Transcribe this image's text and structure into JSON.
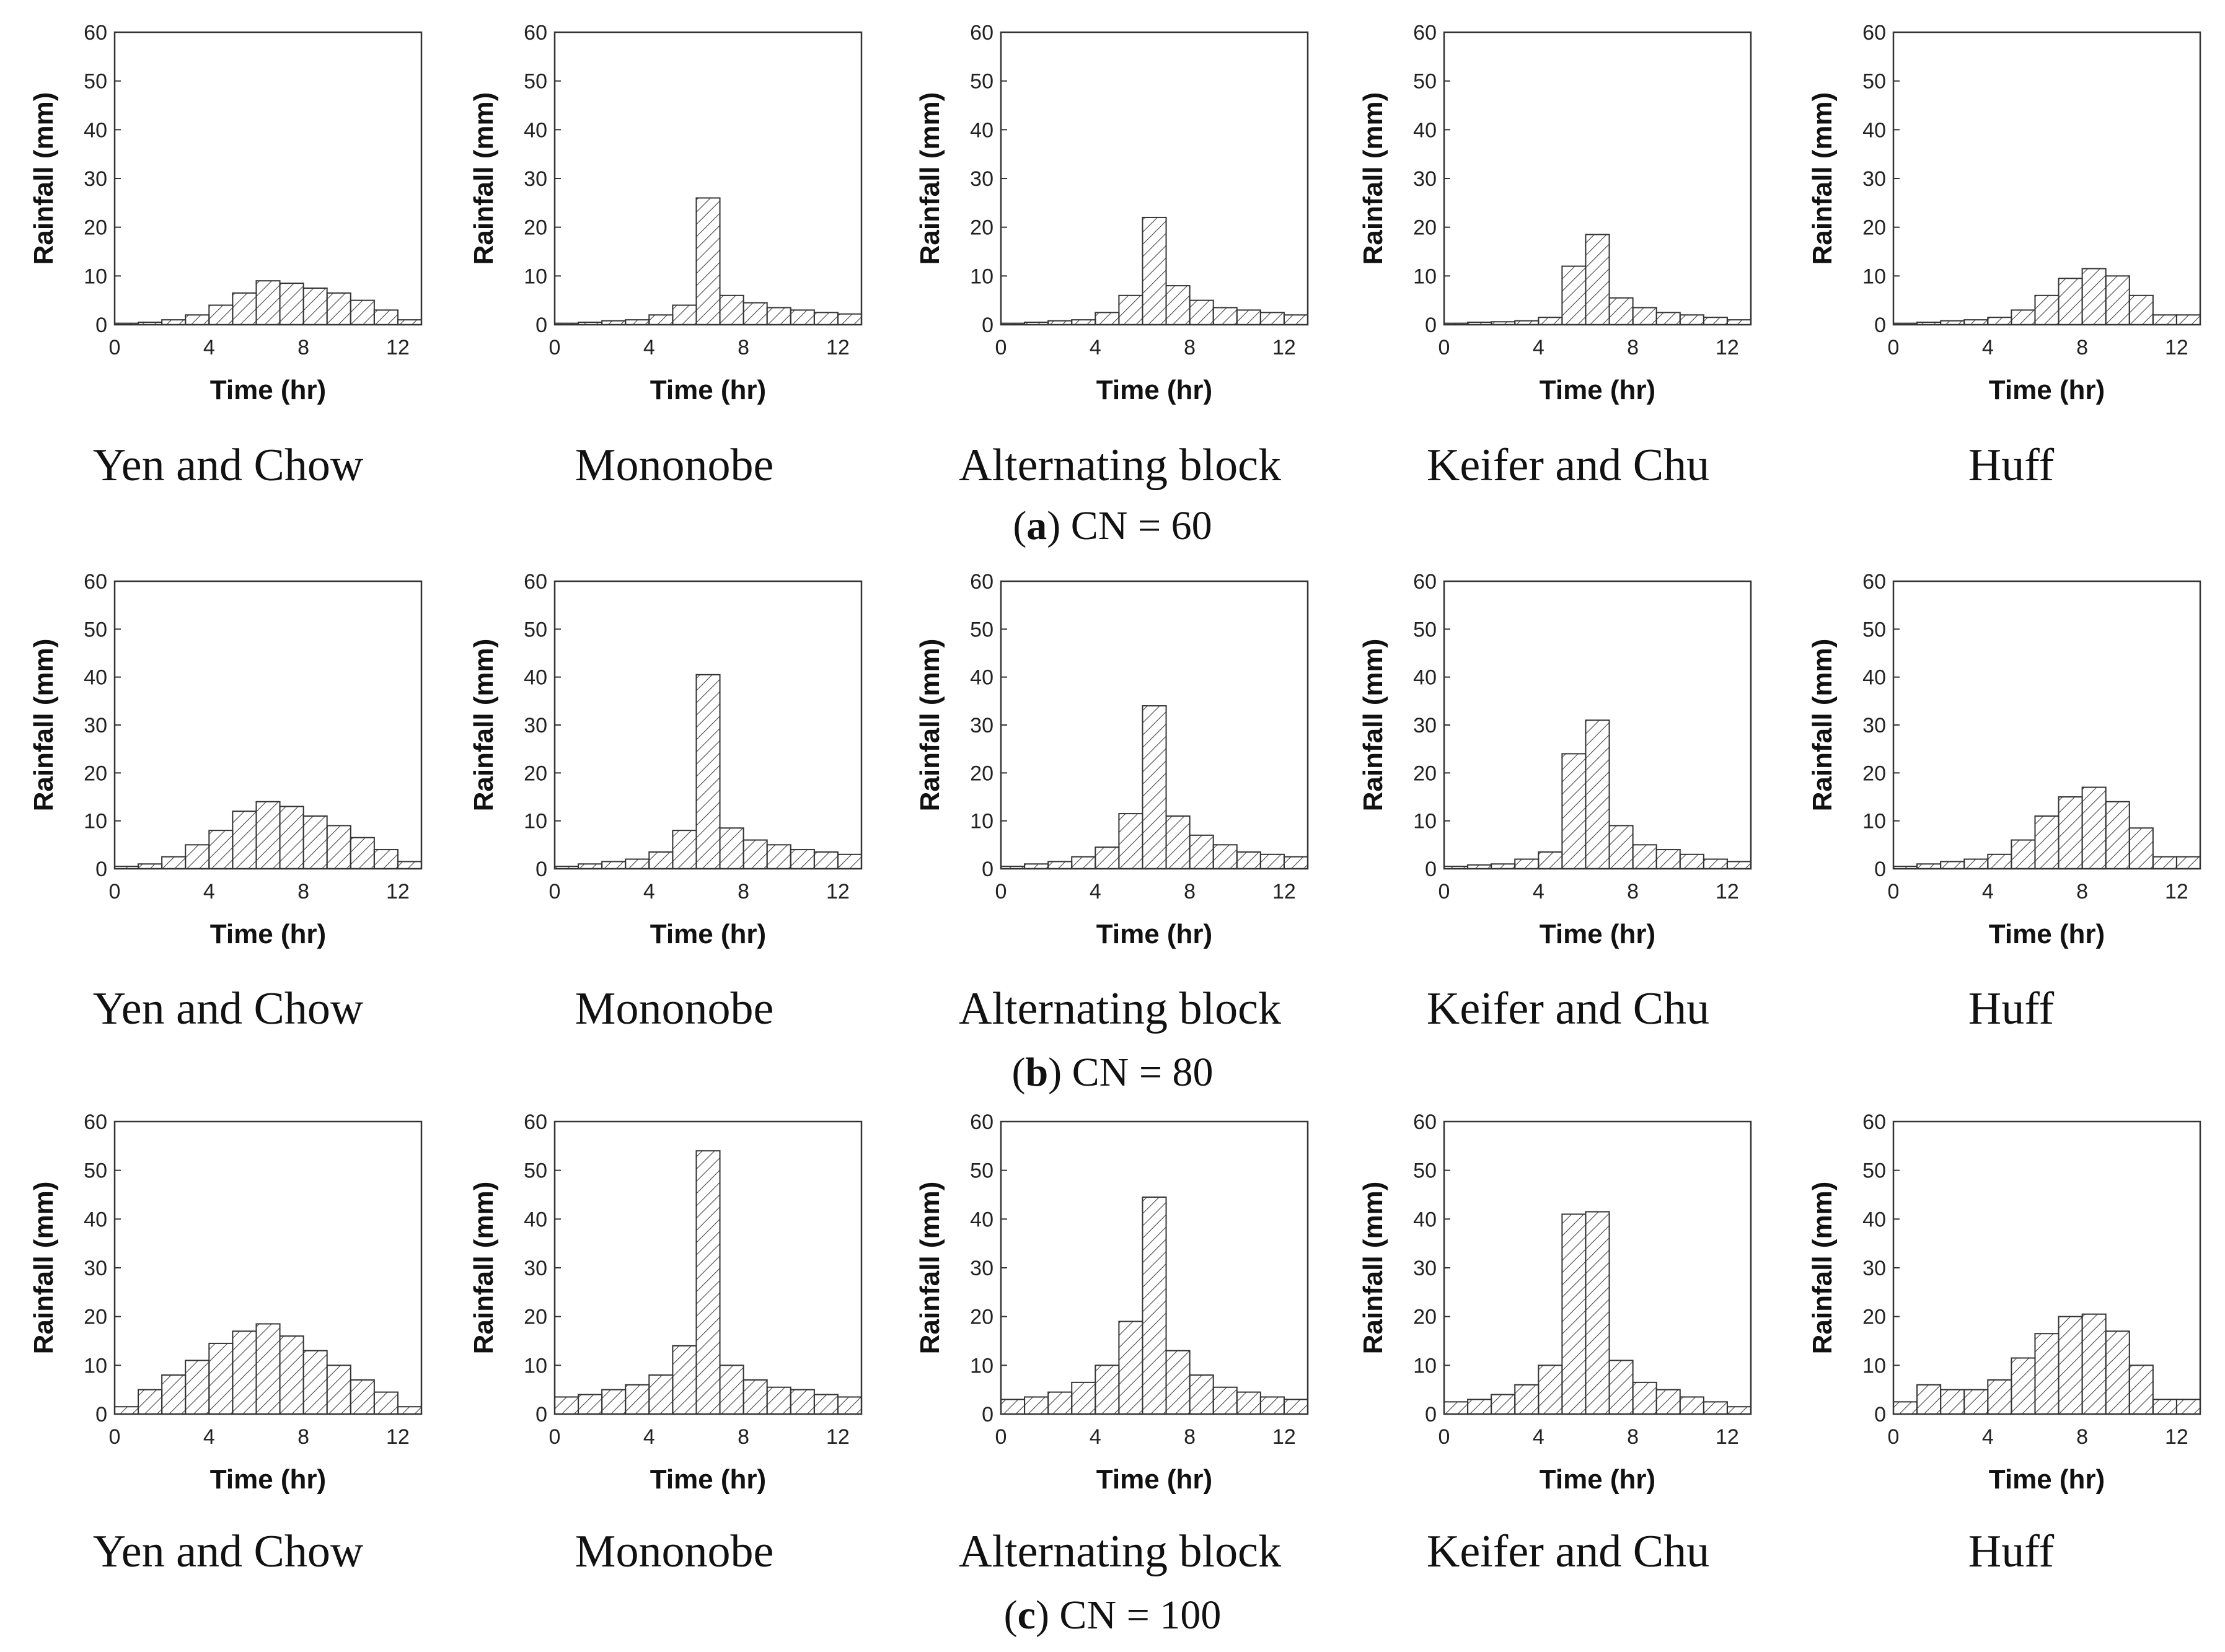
{
  "rows": [
    {
      "caption_letter": "a",
      "caption_text": ") CN = 60",
      "caption_open": "("
    },
    {
      "caption_letter": "b",
      "caption_text": ") CN = 80",
      "caption_open": "("
    },
    {
      "caption_letter": "c",
      "caption_text": ") CN = 100",
      "caption_open": "("
    }
  ],
  "panel_titles": [
    "Yen and Chow",
    "Mononobe",
    "Alternating block",
    "Keifer and Chu",
    "Huff"
  ],
  "axis": {
    "xlabel": "Time (hr)",
    "ylabel": "Rainfall (mm)"
  },
  "chart_data": [
    {
      "type": "bar",
      "row": 0,
      "col": 0,
      "title": "Yen and Chow",
      "xlabel": "Time (hr)",
      "ylabel": "Rainfall (mm)",
      "xlim": [
        0,
        13
      ],
      "ylim": [
        0,
        60
      ],
      "xticks": [
        0,
        4,
        8,
        12
      ],
      "yticks": [
        0,
        10,
        20,
        30,
        40,
        50,
        60
      ],
      "bin_width": 1,
      "x": [
        0,
        1,
        2,
        3,
        4,
        5,
        6,
        7,
        8,
        9,
        10,
        11,
        12
      ],
      "values": [
        0.3,
        0.5,
        1,
        2,
        4,
        6.5,
        9,
        8.5,
        7.5,
        6.5,
        5,
        3,
        1
      ]
    },
    {
      "type": "bar",
      "row": 0,
      "col": 1,
      "title": "Mononobe",
      "xlabel": "Time (hr)",
      "ylabel": "Rainfall (mm)",
      "xlim": [
        0,
        13
      ],
      "ylim": [
        0,
        60
      ],
      "xticks": [
        0,
        4,
        8,
        12
      ],
      "yticks": [
        0,
        10,
        20,
        30,
        40,
        50,
        60
      ],
      "bin_width": 1,
      "x": [
        0,
        1,
        2,
        3,
        4,
        5,
        6,
        7,
        8,
        9,
        10,
        11,
        12
      ],
      "values": [
        0.3,
        0.5,
        0.8,
        1,
        2,
        4,
        26,
        6,
        4.5,
        3.5,
        3,
        2.5,
        2.2
      ]
    },
    {
      "type": "bar",
      "row": 0,
      "col": 2,
      "title": "Alternating block",
      "xlabel": "Time (hr)",
      "ylabel": "Rainfall (mm)",
      "xlim": [
        0,
        13
      ],
      "ylim": [
        0,
        60
      ],
      "xticks": [
        0,
        4,
        8,
        12
      ],
      "yticks": [
        0,
        10,
        20,
        30,
        40,
        50,
        60
      ],
      "bin_width": 1,
      "x": [
        0,
        1,
        2,
        3,
        4,
        5,
        6,
        7,
        8,
        9,
        10,
        11,
        12
      ],
      "values": [
        0.3,
        0.5,
        0.8,
        1,
        2.5,
        6,
        22,
        8,
        5,
        3.5,
        3,
        2.5,
        2
      ]
    },
    {
      "type": "bar",
      "row": 0,
      "col": 3,
      "title": "Keifer and Chu",
      "xlabel": "Time (hr)",
      "ylabel": "Rainfall (mm)",
      "xlim": [
        0,
        13
      ],
      "ylim": [
        0,
        60
      ],
      "xticks": [
        0,
        4,
        8,
        12
      ],
      "yticks": [
        0,
        10,
        20,
        30,
        40,
        50,
        60
      ],
      "bin_width": 1,
      "x": [
        0,
        1,
        2,
        3,
        4,
        5,
        6,
        7,
        8,
        9,
        10,
        11,
        12
      ],
      "values": [
        0.3,
        0.5,
        0.6,
        0.8,
        1.5,
        12,
        18.5,
        5.5,
        3.5,
        2.5,
        2,
        1.5,
        1
      ]
    },
    {
      "type": "bar",
      "row": 0,
      "col": 4,
      "title": "Huff",
      "xlabel": "Time (hr)",
      "ylabel": "Rainfall (mm)",
      "xlim": [
        0,
        13
      ],
      "ylim": [
        0,
        60
      ],
      "xticks": [
        0,
        4,
        8,
        12
      ],
      "yticks": [
        0,
        10,
        20,
        30,
        40,
        50,
        60
      ],
      "bin_width": 1,
      "x": [
        0,
        1,
        2,
        3,
        4,
        5,
        6,
        7,
        8,
        9,
        10,
        11,
        12
      ],
      "values": [
        0.3,
        0.5,
        0.8,
        1,
        1.5,
        3,
        6,
        9.5,
        11.5,
        10,
        6,
        2,
        2
      ]
    },
    {
      "type": "bar",
      "row": 1,
      "col": 0,
      "title": "Yen and Chow",
      "xlabel": "Time (hr)",
      "ylabel": "Rainfall (mm)",
      "xlim": [
        0,
        13
      ],
      "ylim": [
        0,
        60
      ],
      "xticks": [
        0,
        4,
        8,
        12
      ],
      "yticks": [
        0,
        10,
        20,
        30,
        40,
        50,
        60
      ],
      "bin_width": 1,
      "x": [
        0,
        1,
        2,
        3,
        4,
        5,
        6,
        7,
        8,
        9,
        10,
        11,
        12
      ],
      "values": [
        0.5,
        1,
        2.5,
        5,
        8,
        12,
        14,
        13,
        11,
        9,
        6.5,
        4,
        1.5
      ]
    },
    {
      "type": "bar",
      "row": 1,
      "col": 1,
      "title": "Mononobe",
      "xlabel": "Time (hr)",
      "ylabel": "Rainfall (mm)",
      "xlim": [
        0,
        13
      ],
      "ylim": [
        0,
        60
      ],
      "xticks": [
        0,
        4,
        8,
        12
      ],
      "yticks": [
        0,
        10,
        20,
        30,
        40,
        50,
        60
      ],
      "bin_width": 1,
      "x": [
        0,
        1,
        2,
        3,
        4,
        5,
        6,
        7,
        8,
        9,
        10,
        11,
        12
      ],
      "values": [
        0.5,
        1,
        1.5,
        2,
        3.5,
        8,
        40.5,
        8.5,
        6,
        5,
        4,
        3.5,
        3
      ]
    },
    {
      "type": "bar",
      "row": 1,
      "col": 2,
      "title": "Alternating block",
      "xlabel": "Time (hr)",
      "ylabel": "Rainfall (mm)",
      "xlim": [
        0,
        13
      ],
      "ylim": [
        0,
        60
      ],
      "xticks": [
        0,
        4,
        8,
        12
      ],
      "yticks": [
        0,
        10,
        20,
        30,
        40,
        50,
        60
      ],
      "bin_width": 1,
      "x": [
        0,
        1,
        2,
        3,
        4,
        5,
        6,
        7,
        8,
        9,
        10,
        11,
        12
      ],
      "values": [
        0.5,
        1,
        1.5,
        2.5,
        4.5,
        11.5,
        34,
        11,
        7,
        5,
        3.5,
        3,
        2.5
      ]
    },
    {
      "type": "bar",
      "row": 1,
      "col": 3,
      "title": "Keifer and Chu",
      "xlabel": "Time (hr)",
      "ylabel": "Rainfall (mm)",
      "xlim": [
        0,
        13
      ],
      "ylim": [
        0,
        60
      ],
      "xticks": [
        0,
        4,
        8,
        12
      ],
      "yticks": [
        0,
        10,
        20,
        30,
        40,
        50,
        60
      ],
      "bin_width": 1,
      "x": [
        0,
        1,
        2,
        3,
        4,
        5,
        6,
        7,
        8,
        9,
        10,
        11,
        12
      ],
      "values": [
        0.5,
        0.8,
        1,
        2,
        3.5,
        24,
        31,
        9,
        5,
        4,
        3,
        2,
        1.5
      ]
    },
    {
      "type": "bar",
      "row": 1,
      "col": 4,
      "title": "Huff",
      "xlabel": "Time (hr)",
      "ylabel": "Rainfall (mm)",
      "xlim": [
        0,
        13
      ],
      "ylim": [
        0,
        60
      ],
      "xticks": [
        0,
        4,
        8,
        12
      ],
      "yticks": [
        0,
        10,
        20,
        30,
        40,
        50,
        60
      ],
      "bin_width": 1,
      "x": [
        0,
        1,
        2,
        3,
        4,
        5,
        6,
        7,
        8,
        9,
        10,
        11,
        12
      ],
      "values": [
        0.5,
        1,
        1.5,
        2,
        3,
        6,
        11,
        15,
        17,
        14,
        8.5,
        2.5,
        2.5
      ]
    },
    {
      "type": "bar",
      "row": 2,
      "col": 0,
      "title": "Yen and Chow",
      "xlabel": "Time (hr)",
      "ylabel": "Rainfall (mm)",
      "xlim": [
        0,
        13
      ],
      "ylim": [
        0,
        60
      ],
      "xticks": [
        0,
        4,
        8,
        12
      ],
      "yticks": [
        0,
        10,
        20,
        30,
        40,
        50,
        60
      ],
      "bin_width": 1,
      "x": [
        0,
        1,
        2,
        3,
        4,
        5,
        6,
        7,
        8,
        9,
        10,
        11,
        12
      ],
      "values": [
        1.5,
        5,
        8,
        11,
        14.5,
        17,
        18.5,
        16,
        13,
        10,
        7,
        4.5,
        1.5
      ]
    },
    {
      "type": "bar",
      "row": 2,
      "col": 1,
      "title": "Mononobe",
      "xlabel": "Time (hr)",
      "ylabel": "Rainfall (mm)",
      "xlim": [
        0,
        13
      ],
      "ylim": [
        0,
        60
      ],
      "xticks": [
        0,
        4,
        8,
        12
      ],
      "yticks": [
        0,
        10,
        20,
        30,
        40,
        50,
        60
      ],
      "bin_width": 1,
      "x": [
        0,
        1,
        2,
        3,
        4,
        5,
        6,
        7,
        8,
        9,
        10,
        11,
        12
      ],
      "values": [
        3.5,
        4,
        5,
        6,
        8,
        14,
        54,
        10,
        7,
        5.5,
        5,
        4,
        3.5
      ]
    },
    {
      "type": "bar",
      "row": 2,
      "col": 2,
      "title": "Alternating block",
      "xlabel": "Time (hr)",
      "ylabel": "Rainfall (mm)",
      "xlim": [
        0,
        13
      ],
      "ylim": [
        0,
        60
      ],
      "xticks": [
        0,
        4,
        8,
        12
      ],
      "yticks": [
        0,
        10,
        20,
        30,
        40,
        50,
        60
      ],
      "bin_width": 1,
      "x": [
        0,
        1,
        2,
        3,
        4,
        5,
        6,
        7,
        8,
        9,
        10,
        11,
        12
      ],
      "values": [
        3,
        3.5,
        4.5,
        6.5,
        10,
        19,
        44.5,
        13,
        8,
        5.5,
        4.5,
        3.5,
        3
      ]
    },
    {
      "type": "bar",
      "row": 2,
      "col": 3,
      "title": "Keifer and Chu",
      "xlabel": "Time (hr)",
      "ylabel": "Rainfall (mm)",
      "xlim": [
        0,
        13
      ],
      "ylim": [
        0,
        60
      ],
      "xticks": [
        0,
        4,
        8,
        12
      ],
      "yticks": [
        0,
        10,
        20,
        30,
        40,
        50,
        60
      ],
      "bin_width": 1,
      "x": [
        0,
        1,
        2,
        3,
        4,
        5,
        6,
        7,
        8,
        9,
        10,
        11,
        12
      ],
      "values": [
        2.5,
        3,
        4,
        6,
        10,
        41,
        41.5,
        11,
        6.5,
        5,
        3.5,
        2.5,
        1.5
      ]
    },
    {
      "type": "bar",
      "row": 2,
      "col": 4,
      "title": "Huff",
      "xlabel": "Time (hr)",
      "ylabel": "Rainfall (mm)",
      "xlim": [
        0,
        13
      ],
      "ylim": [
        0,
        60
      ],
      "xticks": [
        0,
        4,
        8,
        12
      ],
      "yticks": [
        0,
        10,
        20,
        30,
        40,
        50,
        60
      ],
      "bin_width": 1,
      "x": [
        0,
        1,
        2,
        3,
        4,
        5,
        6,
        7,
        8,
        9,
        10,
        11,
        12
      ],
      "values": [
        2.5,
        6,
        5,
        5,
        7,
        11.5,
        16.5,
        20,
        20.5,
        17,
        10,
        3,
        3
      ]
    }
  ]
}
